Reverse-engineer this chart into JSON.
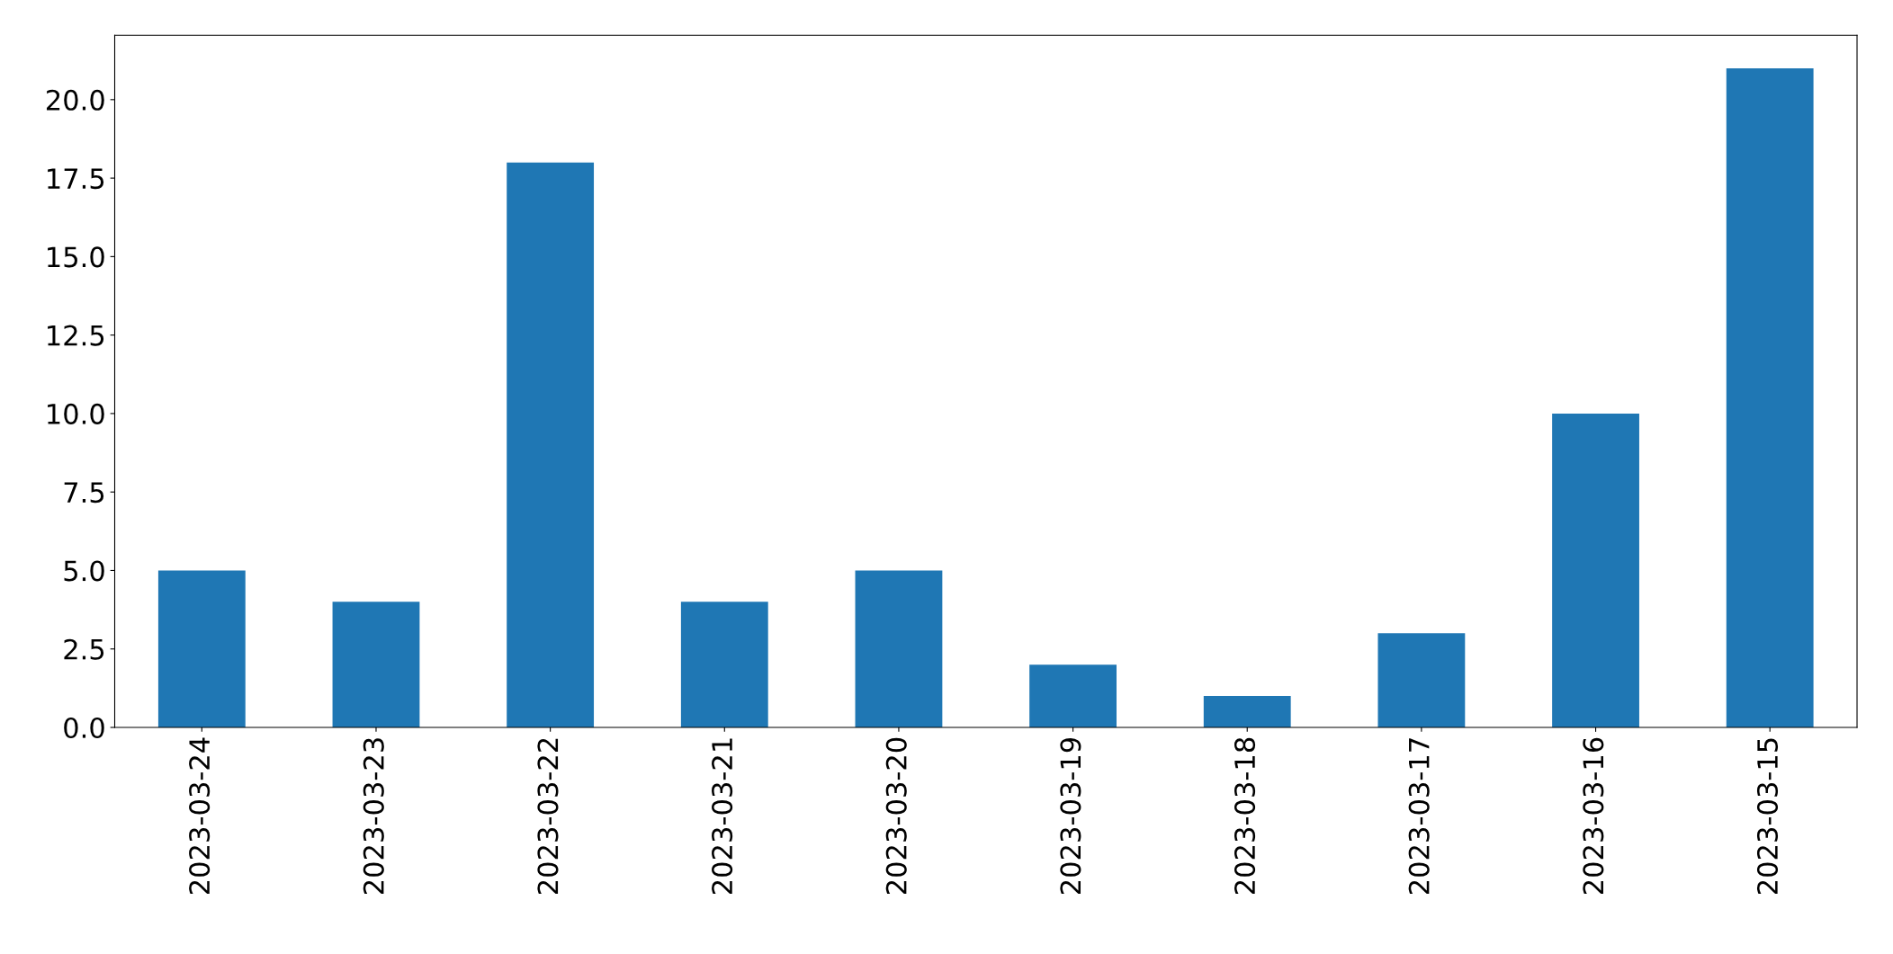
{
  "chart_data": {
    "type": "bar",
    "categories": [
      "2023-03-24",
      "2023-03-23",
      "2023-03-22",
      "2023-03-21",
      "2023-03-20",
      "2023-03-19",
      "2023-03-18",
      "2023-03-17",
      "2023-03-16",
      "2023-03-15"
    ],
    "values": [
      5,
      4,
      18,
      4,
      5,
      2,
      1,
      3,
      10,
      21
    ],
    "color": "#1f77b4",
    "ylim": [
      0,
      22.05
    ],
    "yticks": [
      {
        "value": 0,
        "label": "0.0"
      },
      {
        "value": 2.5,
        "label": "2.5"
      },
      {
        "value": 5,
        "label": "5.0"
      },
      {
        "value": 7.5,
        "label": "7.5"
      },
      {
        "value": 10,
        "label": "10.0"
      },
      {
        "value": 12.5,
        "label": "12.5"
      },
      {
        "value": 15,
        "label": "15.0"
      },
      {
        "value": 17.5,
        "label": "17.5"
      },
      {
        "value": 20,
        "label": "20.0"
      }
    ],
    "grid": false
  }
}
